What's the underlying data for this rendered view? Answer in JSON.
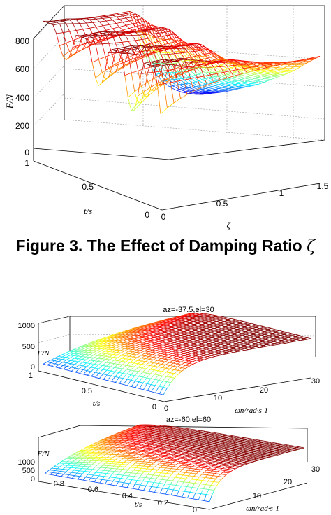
{
  "caption": {
    "text": "Figure 3. The Effect of Damping Ratio",
    "symbol": "ζ"
  },
  "chart_data": [
    {
      "type": "surface",
      "title": "",
      "zlabel": "F/N",
      "xlabel": "t/s",
      "ylabel": "ζ",
      "x_ticks": [
        "0",
        "0.5",
        "1"
      ],
      "y_ticks": [
        "0",
        "0.5",
        "1",
        "1.5"
      ],
      "z_ticks": [
        "0",
        "200",
        "400",
        "600",
        "800"
      ],
      "xlim": [
        0,
        1
      ],
      "ylim": [
        0,
        1.5
      ],
      "zlim": [
        0,
        800
      ],
      "grid": true,
      "colormap": "jet"
    },
    {
      "type": "surface",
      "title": "az=-37.5,el=30",
      "zlabel": "F/N",
      "xlabel": "t/s",
      "ylabel": "ωn/rad·s-1",
      "x_ticks": [
        "0",
        "0.5",
        "1"
      ],
      "y_ticks": [
        "0",
        "10",
        "20",
        "30"
      ],
      "z_ticks": [
        "0",
        "500",
        "1000"
      ],
      "xlim": [
        0,
        1
      ],
      "ylim": [
        0,
        30
      ],
      "zlim": [
        0,
        1000
      ],
      "view": {
        "azimuth": -37.5,
        "elevation": 30
      },
      "grid": true,
      "colormap": "jet"
    },
    {
      "type": "surface",
      "title": "az=-60,el=60",
      "zlabel": "F/N",
      "xlabel": "t/s",
      "ylabel": "ωn/rad·s-1",
      "x_ticks": [
        "0",
        "0.2",
        "0.4",
        "0.6",
        "0.8"
      ],
      "y_ticks": [
        "10",
        "20",
        "30"
      ],
      "z_ticks": [
        "0",
        "500",
        "1000"
      ],
      "xlim": [
        0,
        1
      ],
      "ylim": [
        0,
        30
      ],
      "zlim": [
        0,
        1000
      ],
      "view": {
        "azimuth": -60,
        "elevation": 60
      },
      "grid": true,
      "colormap": "jet"
    }
  ]
}
